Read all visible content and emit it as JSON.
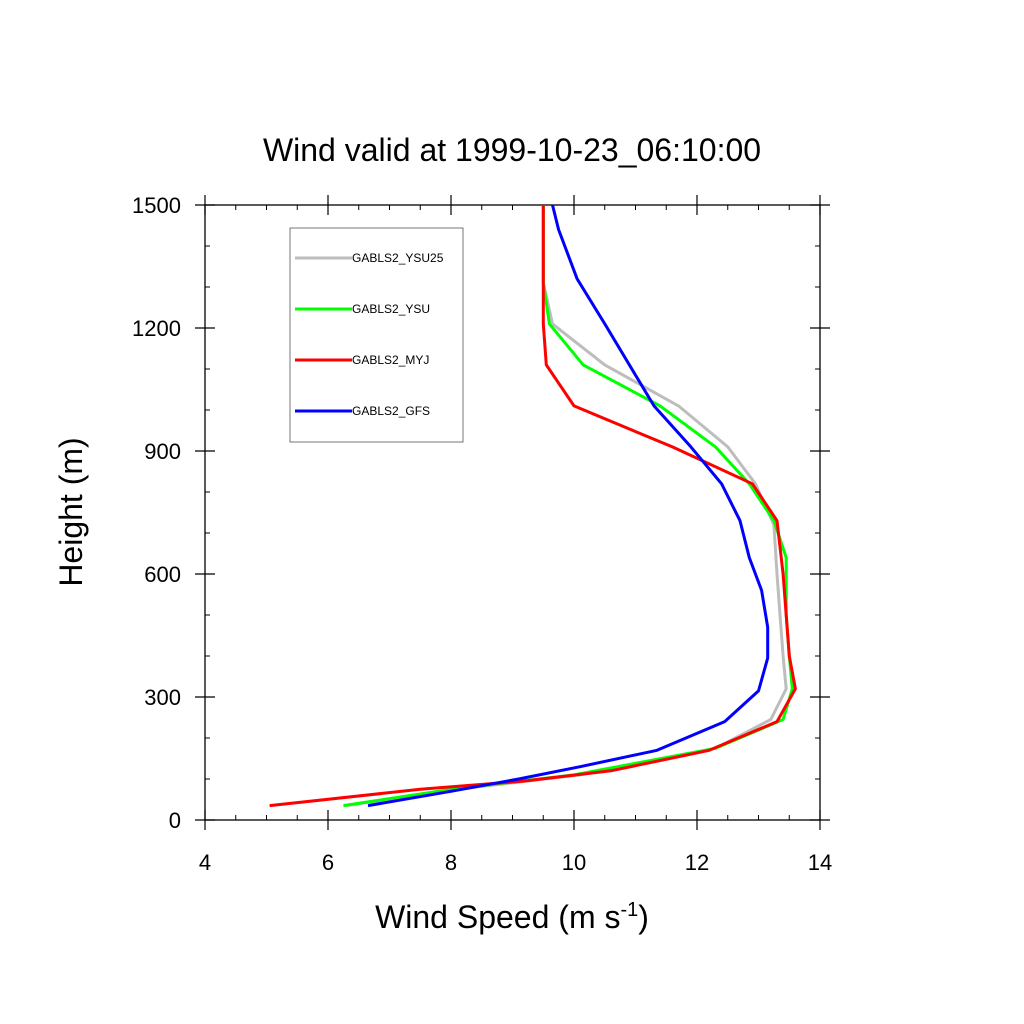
{
  "chart_data": {
    "type": "line",
    "title": "Wind valid at 1999-10-23_06:10:00",
    "xlabel": "Wind Speed (m s",
    "xlabel_sup": "-1",
    "xlabel_suffix": ")",
    "ylabel": "Height (m)",
    "xlim": [
      4,
      14
    ],
    "ylim": [
      0,
      1500
    ],
    "x_ticks": [
      4,
      6,
      8,
      10,
      12,
      14
    ],
    "y_ticks": [
      0,
      300,
      600,
      900,
      1200,
      1500
    ],
    "grid": false,
    "legend_position": "top-left",
    "series": [
      {
        "name": "GABLS2_YSU25",
        "color": "#bdbdbd",
        "points": [
          [
            6.3,
            35
          ],
          [
            8.1,
            75
          ],
          [
            10.1,
            110
          ],
          [
            12.3,
            175
          ],
          [
            13.2,
            245
          ],
          [
            13.45,
            320
          ],
          [
            13.4,
            400
          ],
          [
            13.35,
            500
          ],
          [
            13.3,
            600
          ],
          [
            13.25,
            720
          ],
          [
            12.95,
            820
          ],
          [
            12.5,
            910
          ],
          [
            11.7,
            1010
          ],
          [
            10.5,
            1110
          ],
          [
            9.65,
            1210
          ],
          [
            9.5,
            1310
          ],
          [
            9.5,
            1400
          ],
          [
            9.5,
            1500
          ]
        ]
      },
      {
        "name": "GABLS2_YSU",
        "color": "#00ff00",
        "points": [
          [
            6.25,
            35
          ],
          [
            8.0,
            75
          ],
          [
            10.0,
            110
          ],
          [
            12.3,
            175
          ],
          [
            13.4,
            245
          ],
          [
            13.55,
            320
          ],
          [
            13.5,
            400
          ],
          [
            13.45,
            500
          ],
          [
            13.45,
            640
          ],
          [
            13.25,
            730
          ],
          [
            12.85,
            820
          ],
          [
            12.3,
            910
          ],
          [
            11.4,
            1010
          ],
          [
            10.15,
            1110
          ],
          [
            9.6,
            1210
          ],
          [
            9.5,
            1310
          ],
          [
            9.5,
            1400
          ],
          [
            9.5,
            1500
          ]
        ]
      },
      {
        "name": "GABLS2_MYJ",
        "color": "#ff0000",
        "points": [
          [
            5.05,
            35
          ],
          [
            7.5,
            75
          ],
          [
            9.2,
            95
          ],
          [
            10.6,
            120
          ],
          [
            12.2,
            170
          ],
          [
            13.3,
            240
          ],
          [
            13.6,
            320
          ],
          [
            13.5,
            400
          ],
          [
            13.45,
            500
          ],
          [
            13.4,
            600
          ],
          [
            13.3,
            730
          ],
          [
            12.9,
            820
          ],
          [
            11.6,
            910
          ],
          [
            10.0,
            1010
          ],
          [
            9.55,
            1110
          ],
          [
            9.5,
            1210
          ],
          [
            9.5,
            1310
          ],
          [
            9.5,
            1400
          ],
          [
            9.5,
            1500
          ]
        ]
      },
      {
        "name": "GABLS2_GFS",
        "color": "#0000ff",
        "points": [
          [
            6.65,
            35
          ],
          [
            8.0,
            70
          ],
          [
            9.1,
            100
          ],
          [
            10.1,
            130
          ],
          [
            11.35,
            170
          ],
          [
            12.45,
            240
          ],
          [
            13.0,
            315
          ],
          [
            13.15,
            395
          ],
          [
            13.15,
            470
          ],
          [
            13.05,
            560
          ],
          [
            12.85,
            640
          ],
          [
            12.7,
            730
          ],
          [
            12.4,
            820
          ],
          [
            11.9,
            910
          ],
          [
            11.3,
            1010
          ],
          [
            10.5,
            1210
          ],
          [
            10.05,
            1320
          ],
          [
            9.75,
            1440
          ],
          [
            9.65,
            1500
          ]
        ]
      }
    ]
  }
}
